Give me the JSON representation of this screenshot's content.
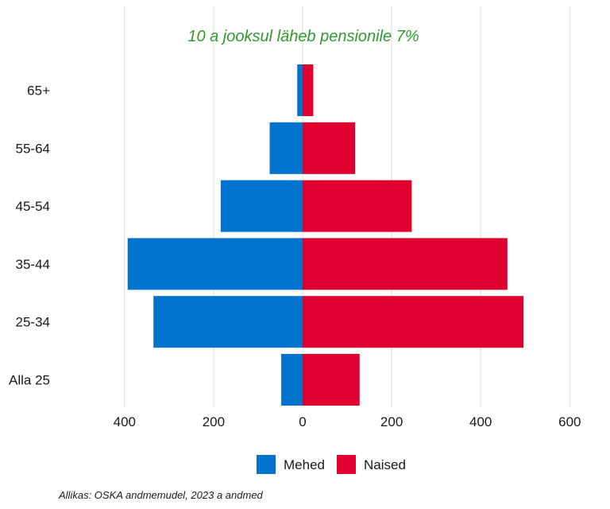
{
  "chart_data": {
    "type": "bar",
    "orientation": "horizontal",
    "categories": [
      "Alla 25",
      "25-34",
      "35-44",
      "45-54",
      "55-64",
      "65+"
    ],
    "series": [
      {
        "name": "Mehed",
        "values": [
          -48,
          -335,
          -393,
          -184,
          -74,
          -12
        ],
        "color": "#0073cf"
      },
      {
        "name": "Naised",
        "values": [
          128,
          496,
          460,
          245,
          118,
          24
        ],
        "color": "#e0002f"
      }
    ],
    "x_ticks": [
      {
        "value": -400,
        "label": "400"
      },
      {
        "value": -200,
        "label": "200"
      },
      {
        "value": 0,
        "label": "0"
      },
      {
        "value": 200,
        "label": "200"
      },
      {
        "value": 400,
        "label": "400"
      },
      {
        "value": 600,
        "label": "600"
      }
    ],
    "xlim": [
      -400,
      600
    ],
    "annotation": {
      "text": "10 a jooksul läheb pensionile 7%",
      "color": "#2e9a2e"
    },
    "grid": "vertical",
    "legend_position": "bottom"
  },
  "source": "Allikas: OSKA andmemudel, 2023 a andmed"
}
